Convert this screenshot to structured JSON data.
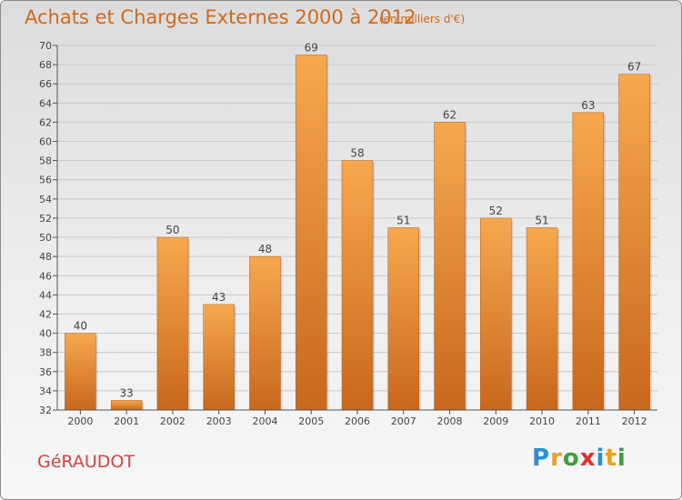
{
  "header": {
    "title": "Achats et Charges Externes 2000 à 2012",
    "subtitle": "(en milliers d'€)"
  },
  "footer": {
    "commune": "GéRAUDOT",
    "brand": "Proxiti",
    "brand_letters": [
      {
        "char": "P",
        "color": "#2b8fd6"
      },
      {
        "char": "r",
        "color": "#e8a020"
      },
      {
        "char": "o",
        "color": "#3aa03a"
      },
      {
        "char": "x",
        "color": "#e03030"
      },
      {
        "char": "i",
        "color": "#2b8fd6"
      },
      {
        "char": "t",
        "color": "#e8a020"
      },
      {
        "char": "i",
        "color": "#3aa03a"
      }
    ]
  },
  "colors": {
    "bar_light": "#f7a84e",
    "bar_dark": "#c8681e",
    "accent": "#d2691e",
    "grid": "#c8c8c8",
    "axis": "#555555"
  },
  "chart_data": {
    "type": "bar",
    "title": "Achats et Charges Externes 2000 à 2012",
    "subtitle": "(en milliers d'€)",
    "categories": [
      "2000",
      "2001",
      "2002",
      "2003",
      "2004",
      "2005",
      "2006",
      "2007",
      "2008",
      "2009",
      "2010",
      "2011",
      "2012"
    ],
    "values": [
      40,
      33,
      50,
      43,
      48,
      69,
      58,
      51,
      62,
      52,
      51,
      63,
      67
    ],
    "ylim": [
      32,
      70
    ],
    "yticks": [
      32,
      34,
      36,
      38,
      40,
      42,
      44,
      46,
      48,
      50,
      52,
      54,
      56,
      58,
      60,
      62,
      64,
      66,
      68,
      70
    ],
    "grid": true,
    "data_labels": true
  }
}
